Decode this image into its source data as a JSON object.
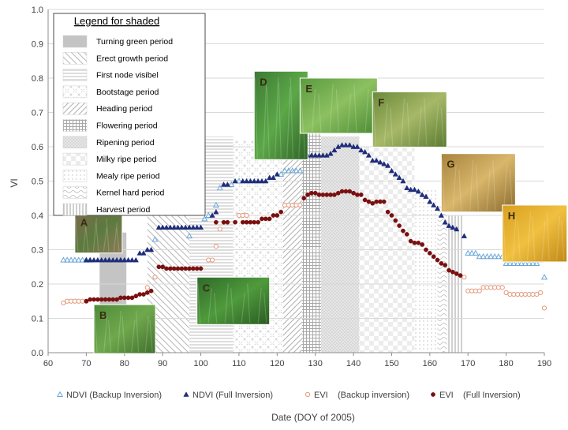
{
  "chart_data": {
    "type": "scatter",
    "xlabel": "Date (DOY of 2005)",
    "ylabel": "VI",
    "xlim": [
      60,
      190
    ],
    "ylim": [
      0.0,
      1.0
    ],
    "xticks": [
      "60",
      "70",
      "80",
      "90",
      "100",
      "110",
      "120",
      "130",
      "140",
      "150",
      "160",
      "170",
      "180",
      "190"
    ],
    "yticks": [
      "0.0",
      "0.1",
      "0.2",
      "0.3",
      "0.4",
      "0.5",
      "0.6",
      "0.7",
      "0.8",
      "0.9",
      "1.0"
    ],
    "grid": "horizontal",
    "legend_title": "Legend for shaded",
    "periods": [
      {
        "label": "Turning green period",
        "x0": 73.5,
        "x1": 80.5,
        "pattern": "solid"
      },
      {
        "label": "Erect growth period",
        "x0": 86,
        "x1": 97,
        "pattern": "backdiag"
      },
      {
        "label": "First node visibel",
        "x0": 97,
        "x1": 108.5,
        "pattern": "hlines"
      },
      {
        "label": "Bootstage period",
        "x0": 108.5,
        "x1": 121.5,
        "pattern": "crosshatch"
      },
      {
        "label": "Heading period",
        "x0": 121.5,
        "x1": 126.5,
        "pattern": "diag"
      },
      {
        "label": "Flowering period",
        "x0": 126.5,
        "x1": 131.5,
        "pattern": "grid"
      },
      {
        "label": "Ripening period",
        "x0": 131.5,
        "x1": 141.5,
        "pattern": "dots"
      },
      {
        "label": "Milky ripe period",
        "x0": 141.5,
        "x1": 156,
        "pattern": "checker"
      },
      {
        "label": "Mealy ripe period",
        "x0": 156,
        "x1": 162,
        "pattern": "sparse"
      },
      {
        "label": "Kernel hard period",
        "x0": 162,
        "x1": 164.5,
        "pattern": "wave"
      },
      {
        "label": "Harvest period",
        "x0": 164.5,
        "x1": 169,
        "pattern": "vlines"
      }
    ],
    "photos": [
      {
        "label": "A",
        "x": 67,
        "y": 0.41
      },
      {
        "label": "B",
        "x": 72,
        "y": 0.14
      },
      {
        "label": "C",
        "x": 99,
        "y": 0.22
      },
      {
        "label": "D",
        "x": 114,
        "y": 0.82
      },
      {
        "label": "E",
        "x": 126,
        "y": 0.8
      },
      {
        "label": "F",
        "x": 145,
        "y": 0.76
      },
      {
        "label": "G",
        "x": 163,
        "y": 0.58
      },
      {
        "label": "H",
        "x": 179,
        "y": 0.43
      }
    ],
    "series": [
      {
        "name": "NDVI (Backup Inversion)",
        "color": "#6aa6d8",
        "marker": "triangle-open",
        "points": [
          [
            64,
            0.27
          ],
          [
            65,
            0.27
          ],
          [
            66,
            0.27
          ],
          [
            67,
            0.27
          ],
          [
            68,
            0.27
          ],
          [
            69,
            0.27
          ],
          [
            70,
            0.27
          ],
          [
            71,
            0.27
          ],
          [
            76,
            0.27
          ],
          [
            79,
            0.27
          ],
          [
            88,
            0.33
          ],
          [
            97,
            0.34
          ],
          [
            101,
            0.39
          ],
          [
            102,
            0.4
          ],
          [
            104,
            0.43
          ],
          [
            105,
            0.48
          ],
          [
            108,
            0.49
          ],
          [
            110,
            0.5
          ],
          [
            121,
            0.52
          ],
          [
            122,
            0.53
          ],
          [
            123,
            0.53
          ],
          [
            124,
            0.53
          ],
          [
            125,
            0.53
          ],
          [
            126,
            0.53
          ],
          [
            170,
            0.29
          ],
          [
            171,
            0.29
          ],
          [
            172,
            0.29
          ],
          [
            173,
            0.28
          ],
          [
            174,
            0.28
          ],
          [
            175,
            0.28
          ],
          [
            176,
            0.28
          ],
          [
            177,
            0.28
          ],
          [
            178,
            0.28
          ],
          [
            179,
            0.28
          ],
          [
            180,
            0.26
          ],
          [
            181,
            0.26
          ],
          [
            182,
            0.26
          ],
          [
            183,
            0.26
          ],
          [
            184,
            0.26
          ],
          [
            185,
            0.26
          ],
          [
            186,
            0.26
          ],
          [
            187,
            0.26
          ],
          [
            188,
            0.26
          ],
          [
            189,
            0.27
          ],
          [
            190,
            0.22
          ]
        ]
      },
      {
        "name": "NDVI (Full Inversion)",
        "color": "#1f2d7a",
        "marker": "triangle",
        "points": [
          [
            70,
            0.27
          ],
          [
            71,
            0.27
          ],
          [
            72,
            0.27
          ],
          [
            73,
            0.27
          ],
          [
            74,
            0.27
          ],
          [
            75,
            0.27
          ],
          [
            76,
            0.27
          ],
          [
            77,
            0.27
          ],
          [
            78,
            0.27
          ],
          [
            79,
            0.27
          ],
          [
            80,
            0.27
          ],
          [
            81,
            0.27
          ],
          [
            82,
            0.27
          ],
          [
            83,
            0.27
          ],
          [
            84,
            0.29
          ],
          [
            85,
            0.29
          ],
          [
            86,
            0.3
          ],
          [
            87,
            0.3
          ],
          [
            89,
            0.365
          ],
          [
            90,
            0.365
          ],
          [
            91,
            0.365
          ],
          [
            92,
            0.365
          ],
          [
            93,
            0.365
          ],
          [
            94,
            0.365
          ],
          [
            95,
            0.365
          ],
          [
            96,
            0.365
          ],
          [
            97,
            0.365
          ],
          [
            98,
            0.365
          ],
          [
            99,
            0.365
          ],
          [
            100,
            0.365
          ],
          [
            103,
            0.4
          ],
          [
            104,
            0.41
          ],
          [
            106,
            0.49
          ],
          [
            107,
            0.49
          ],
          [
            109,
            0.5
          ],
          [
            111,
            0.5
          ],
          [
            112,
            0.5
          ],
          [
            113,
            0.5
          ],
          [
            114,
            0.5
          ],
          [
            115,
            0.5
          ],
          [
            116,
            0.5
          ],
          [
            117,
            0.5
          ],
          [
            118,
            0.51
          ],
          [
            119,
            0.51
          ],
          [
            120,
            0.52
          ],
          [
            127,
            0.57
          ],
          [
            128,
            0.575
          ],
          [
            129,
            0.575
          ],
          [
            130,
            0.575
          ],
          [
            131,
            0.575
          ],
          [
            132,
            0.575
          ],
          [
            133,
            0.575
          ],
          [
            134,
            0.58
          ],
          [
            135,
            0.59
          ],
          [
            136,
            0.6
          ],
          [
            137,
            0.605
          ],
          [
            138,
            0.605
          ],
          [
            139,
            0.605
          ],
          [
            140,
            0.6
          ],
          [
            141,
            0.6
          ],
          [
            142,
            0.59
          ],
          [
            143,
            0.585
          ],
          [
            144,
            0.575
          ],
          [
            145,
            0.56
          ],
          [
            146,
            0.56
          ],
          [
            147,
            0.555
          ],
          [
            148,
            0.55
          ],
          [
            149,
            0.545
          ],
          [
            150,
            0.53
          ],
          [
            151,
            0.52
          ],
          [
            152,
            0.51
          ],
          [
            153,
            0.5
          ],
          [
            154,
            0.48
          ],
          [
            155,
            0.475
          ],
          [
            156,
            0.475
          ],
          [
            157,
            0.47
          ],
          [
            158,
            0.46
          ],
          [
            159,
            0.455
          ],
          [
            160,
            0.44
          ],
          [
            161,
            0.43
          ],
          [
            162,
            0.42
          ],
          [
            163,
            0.4
          ],
          [
            164,
            0.38
          ],
          [
            165,
            0.37
          ],
          [
            166,
            0.365
          ],
          [
            167,
            0.36
          ],
          [
            169,
            0.34
          ]
        ]
      },
      {
        "name": "EVI    (Backup inversion)",
        "color": "#e49a7c",
        "marker": "circle-open",
        "points": [
          [
            64,
            0.145
          ],
          [
            65,
            0.15
          ],
          [
            66,
            0.15
          ],
          [
            67,
            0.15
          ],
          [
            68,
            0.15
          ],
          [
            69,
            0.15
          ],
          [
            70,
            0.15
          ],
          [
            86,
            0.19
          ],
          [
            88,
            0.22
          ],
          [
            102,
            0.27
          ],
          [
            103,
            0.27
          ],
          [
            104,
            0.31
          ],
          [
            105,
            0.36
          ],
          [
            110,
            0.4
          ],
          [
            111,
            0.4
          ],
          [
            112,
            0.4
          ],
          [
            122,
            0.43
          ],
          [
            123,
            0.43
          ],
          [
            124,
            0.43
          ],
          [
            125,
            0.43
          ],
          [
            126,
            0.43
          ],
          [
            169,
            0.22
          ],
          [
            170,
            0.18
          ],
          [
            171,
            0.18
          ],
          [
            172,
            0.18
          ],
          [
            173,
            0.18
          ],
          [
            174,
            0.19
          ],
          [
            175,
            0.19
          ],
          [
            176,
            0.19
          ],
          [
            177,
            0.19
          ],
          [
            178,
            0.19
          ],
          [
            179,
            0.19
          ],
          [
            180,
            0.175
          ],
          [
            181,
            0.17
          ],
          [
            182,
            0.17
          ],
          [
            183,
            0.17
          ],
          [
            184,
            0.17
          ],
          [
            185,
            0.17
          ],
          [
            186,
            0.17
          ],
          [
            187,
            0.17
          ],
          [
            188,
            0.17
          ],
          [
            189,
            0.175
          ],
          [
            190,
            0.13
          ]
        ]
      },
      {
        "name": "EVI    (Full Inversion)",
        "color": "#7a0f0f",
        "marker": "circle",
        "points": [
          [
            70,
            0.15
          ],
          [
            71,
            0.155
          ],
          [
            72,
            0.155
          ],
          [
            73,
            0.155
          ],
          [
            74,
            0.155
          ],
          [
            75,
            0.155
          ],
          [
            76,
            0.155
          ],
          [
            77,
            0.155
          ],
          [
            78,
            0.155
          ],
          [
            79,
            0.16
          ],
          [
            80,
            0.16
          ],
          [
            81,
            0.16
          ],
          [
            82,
            0.16
          ],
          [
            83,
            0.165
          ],
          [
            84,
            0.17
          ],
          [
            85,
            0.17
          ],
          [
            86,
            0.175
          ],
          [
            87,
            0.18
          ],
          [
            89,
            0.25
          ],
          [
            90,
            0.25
          ],
          [
            91,
            0.245
          ],
          [
            92,
            0.245
          ],
          [
            93,
            0.245
          ],
          [
            94,
            0.245
          ],
          [
            95,
            0.245
          ],
          [
            96,
            0.245
          ],
          [
            97,
            0.245
          ],
          [
            98,
            0.245
          ],
          [
            99,
            0.245
          ],
          [
            100,
            0.245
          ],
          [
            104,
            0.38
          ],
          [
            106,
            0.38
          ],
          [
            107,
            0.38
          ],
          [
            109,
            0.38
          ],
          [
            111,
            0.38
          ],
          [
            112,
            0.38
          ],
          [
            113,
            0.38
          ],
          [
            114,
            0.38
          ],
          [
            115,
            0.38
          ],
          [
            116,
            0.39
          ],
          [
            117,
            0.39
          ],
          [
            118,
            0.39
          ],
          [
            119,
            0.4
          ],
          [
            120,
            0.4
          ],
          [
            121,
            0.41
          ],
          [
            127,
            0.45
          ],
          [
            128,
            0.46
          ],
          [
            129,
            0.465
          ],
          [
            130,
            0.465
          ],
          [
            131,
            0.46
          ],
          [
            132,
            0.46
          ],
          [
            133,
            0.46
          ],
          [
            134,
            0.46
          ],
          [
            135,
            0.46
          ],
          [
            136,
            0.465
          ],
          [
            137,
            0.47
          ],
          [
            138,
            0.47
          ],
          [
            139,
            0.47
          ],
          [
            140,
            0.465
          ],
          [
            141,
            0.46
          ],
          [
            142,
            0.46
          ],
          [
            143,
            0.445
          ],
          [
            144,
            0.44
          ],
          [
            145,
            0.435
          ],
          [
            146,
            0.44
          ],
          [
            147,
            0.44
          ],
          [
            148,
            0.44
          ],
          [
            149,
            0.41
          ],
          [
            150,
            0.4
          ],
          [
            151,
            0.385
          ],
          [
            152,
            0.37
          ],
          [
            153,
            0.355
          ],
          [
            154,
            0.345
          ],
          [
            155,
            0.325
          ],
          [
            156,
            0.32
          ],
          [
            157,
            0.32
          ],
          [
            158,
            0.315
          ],
          [
            159,
            0.3
          ],
          [
            160,
            0.29
          ],
          [
            161,
            0.28
          ],
          [
            162,
            0.27
          ],
          [
            163,
            0.26
          ],
          [
            164,
            0.255
          ],
          [
            165,
            0.24
          ],
          [
            166,
            0.235
          ],
          [
            167,
            0.23
          ],
          [
            168,
            0.225
          ]
        ]
      }
    ],
    "legend_entries": [
      {
        "label": "NDVI (Backup Inversion)",
        "marker": "triangle-open",
        "color": "#6aa6d8"
      },
      {
        "label": "NDVI (Full Inversion)",
        "marker": "triangle",
        "color": "#1f2d7a"
      },
      {
        "label": "EVI    (Backup inversion)",
        "marker": "circle-open",
        "color": "#e49a7c"
      },
      {
        "label": "EVI    (Full Inversion)",
        "marker": "circle",
        "color": "#7a0f0f"
      }
    ]
  }
}
